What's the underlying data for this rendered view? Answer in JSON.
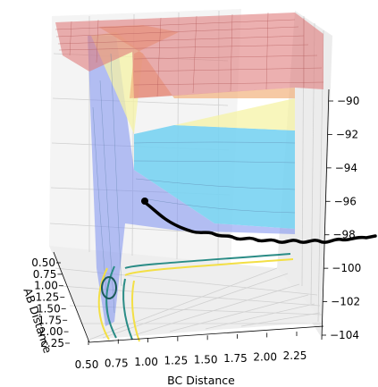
{
  "chart_data": {
    "type": "surface3d",
    "xlabel": "BC Distance",
    "ylabel": "AB Distance",
    "zlabel": "",
    "x_ticks": [
      "0.50",
      "0.75",
      "1.00",
      "1.25",
      "1.50",
      "1.75",
      "2.00",
      "2.25"
    ],
    "y_ticks": [
      "0.50",
      "0.75",
      "1.00",
      "1.25",
      "1.50",
      "1.75",
      "2.00",
      "2.25"
    ],
    "z_ticks": [
      "−90",
      "−92",
      "−94",
      "−96",
      "−98",
      "−100",
      "−102",
      "−104"
    ],
    "z_values": [
      -90,
      -92,
      -94,
      -96,
      -98,
      -100,
      -102,
      -104
    ],
    "zlim": [
      -104,
      -90
    ],
    "grid": true,
    "colors": {
      "clip_plateau": "#e07c7c",
      "high_band": "#f2b27e",
      "mid_band": "#f6f3a6",
      "low_band": "#79d3f2",
      "valley": "#7b8ff0",
      "trajectory": "#000000",
      "contour_teal": "#2a8c86",
      "contour_yellow": "#f3df45"
    }
  }
}
